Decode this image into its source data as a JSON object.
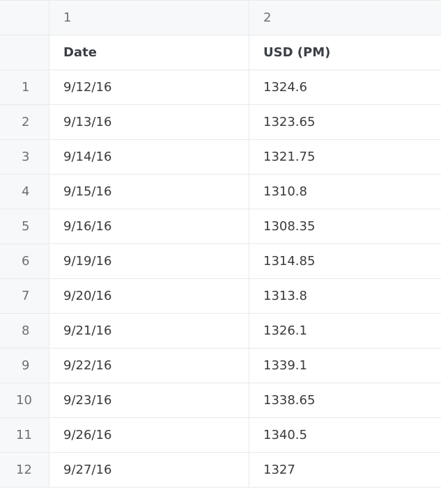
{
  "column_headers": [
    "1",
    "2"
  ],
  "header_row": {
    "row_label": "",
    "cells": [
      "Date",
      "USD (PM)"
    ]
  },
  "rows": [
    {
      "row_label": "1",
      "cells": [
        "9/12/16",
        "1324.6"
      ]
    },
    {
      "row_label": "2",
      "cells": [
        "9/13/16",
        "1323.65"
      ]
    },
    {
      "row_label": "3",
      "cells": [
        "9/14/16",
        "1321.75"
      ]
    },
    {
      "row_label": "4",
      "cells": [
        "9/15/16",
        "1310.8"
      ]
    },
    {
      "row_label": "5",
      "cells": [
        "9/16/16",
        "1308.35"
      ]
    },
    {
      "row_label": "6",
      "cells": [
        "9/19/16",
        "1314.85"
      ]
    },
    {
      "row_label": "7",
      "cells": [
        "9/20/16",
        "1313.8"
      ]
    },
    {
      "row_label": "8",
      "cells": [
        "9/21/16",
        "1326.1"
      ]
    },
    {
      "row_label": "9",
      "cells": [
        "9/22/16",
        "1339.1"
      ]
    },
    {
      "row_label": "10",
      "cells": [
        "9/23/16",
        "1338.65"
      ]
    },
    {
      "row_label": "11",
      "cells": [
        "9/26/16",
        "1340.5"
      ]
    },
    {
      "row_label": "12",
      "cells": [
        "9/27/16",
        "1327"
      ]
    }
  ],
  "colors": {
    "header_background": "#f7f8f9",
    "grid_line": "#e7e9ec",
    "cell_background": "#ffffff"
  }
}
